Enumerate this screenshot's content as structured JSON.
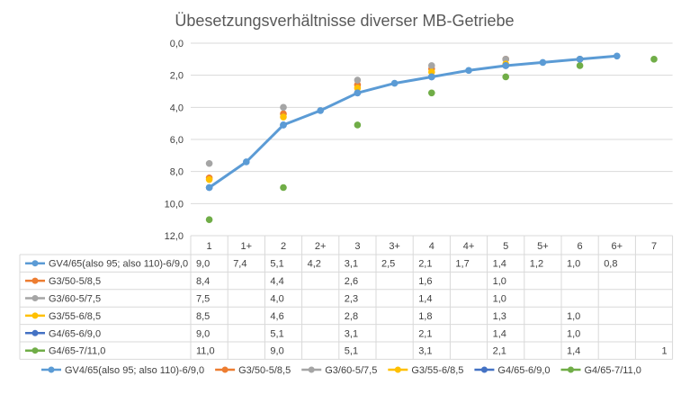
{
  "chart_data": {
    "type": "line",
    "title": "Übesetzungsverhältnisse diverser MB-Getriebe",
    "categories": [
      "1",
      "1+",
      "2",
      "2+",
      "3",
      "3+",
      "4",
      "4+",
      "5",
      "5+",
      "6",
      "6+",
      "7"
    ],
    "y_axis": {
      "min": 0,
      "max": 12,
      "step": 2,
      "reversed": true,
      "tick_labels": [
        "0,0",
        "2,0",
        "4,0",
        "6,0",
        "8,0",
        "10,0",
        "12,0"
      ]
    },
    "grid": true,
    "legend_position": "bottom",
    "data_table": true,
    "series": [
      {
        "name": "GV4/65(also 95; also 110)-6/9,0",
        "color": "#5B9BD5",
        "style": "line",
        "values": [
          9.0,
          7.4,
          5.1,
          4.2,
          3.1,
          2.5,
          2.1,
          1.7,
          1.4,
          1.2,
          1.0,
          0.8,
          null
        ],
        "labels": [
          "9,0",
          "7,4",
          "5,1",
          "4,2",
          "3,1",
          "2,5",
          "2,1",
          "1,7",
          "1,4",
          "1,2",
          "1,0",
          "0,8",
          ""
        ]
      },
      {
        "name": "G3/50-5/8,5",
        "color": "#ED7D31",
        "style": "marker",
        "values": [
          8.4,
          null,
          4.4,
          null,
          2.6,
          null,
          1.6,
          null,
          1.0,
          null,
          null,
          null,
          null
        ],
        "labels": [
          "8,4",
          "",
          "4,4",
          "",
          "2,6",
          "",
          "1,6",
          "",
          "1,0",
          "",
          "",
          "",
          ""
        ]
      },
      {
        "name": "G3/60-5/7,5",
        "color": "#A5A5A5",
        "style": "marker",
        "values": [
          7.5,
          null,
          4.0,
          null,
          2.3,
          null,
          1.4,
          null,
          1.0,
          null,
          null,
          null,
          null
        ],
        "labels": [
          "7,5",
          "",
          "4,0",
          "",
          "2,3",
          "",
          "1,4",
          "",
          "1,0",
          "",
          "",
          "",
          ""
        ]
      },
      {
        "name": "G3/55-6/8,5",
        "color": "#FFC000",
        "style": "marker",
        "values": [
          8.5,
          null,
          4.6,
          null,
          2.8,
          null,
          1.8,
          null,
          1.3,
          null,
          1.0,
          null,
          null
        ],
        "labels": [
          "8,5",
          "",
          "4,6",
          "",
          "2,8",
          "",
          "1,8",
          "",
          "1,3",
          "",
          "1,0",
          "",
          ""
        ]
      },
      {
        "name": "G4/65-6/9,0",
        "color": "#4472C4",
        "style": "marker",
        "values": [
          9.0,
          null,
          5.1,
          null,
          3.1,
          null,
          2.1,
          null,
          1.4,
          null,
          1.0,
          null,
          null
        ],
        "labels": [
          "9,0",
          "",
          "5,1",
          "",
          "3,1",
          "",
          "2,1",
          "",
          "1,4",
          "",
          "1,0",
          "",
          ""
        ]
      },
      {
        "name": "G4/65-7/11,0",
        "color": "#70AD47",
        "style": "marker",
        "values": [
          11.0,
          null,
          9.0,
          null,
          5.1,
          null,
          3.1,
          null,
          2.1,
          null,
          1.4,
          null,
          1.0
        ],
        "labels": [
          "11,0",
          "",
          "9,0",
          "",
          "5,1",
          "",
          "3,1",
          "",
          "2,1",
          "",
          "1,4",
          "",
          "1"
        ]
      }
    ]
  }
}
